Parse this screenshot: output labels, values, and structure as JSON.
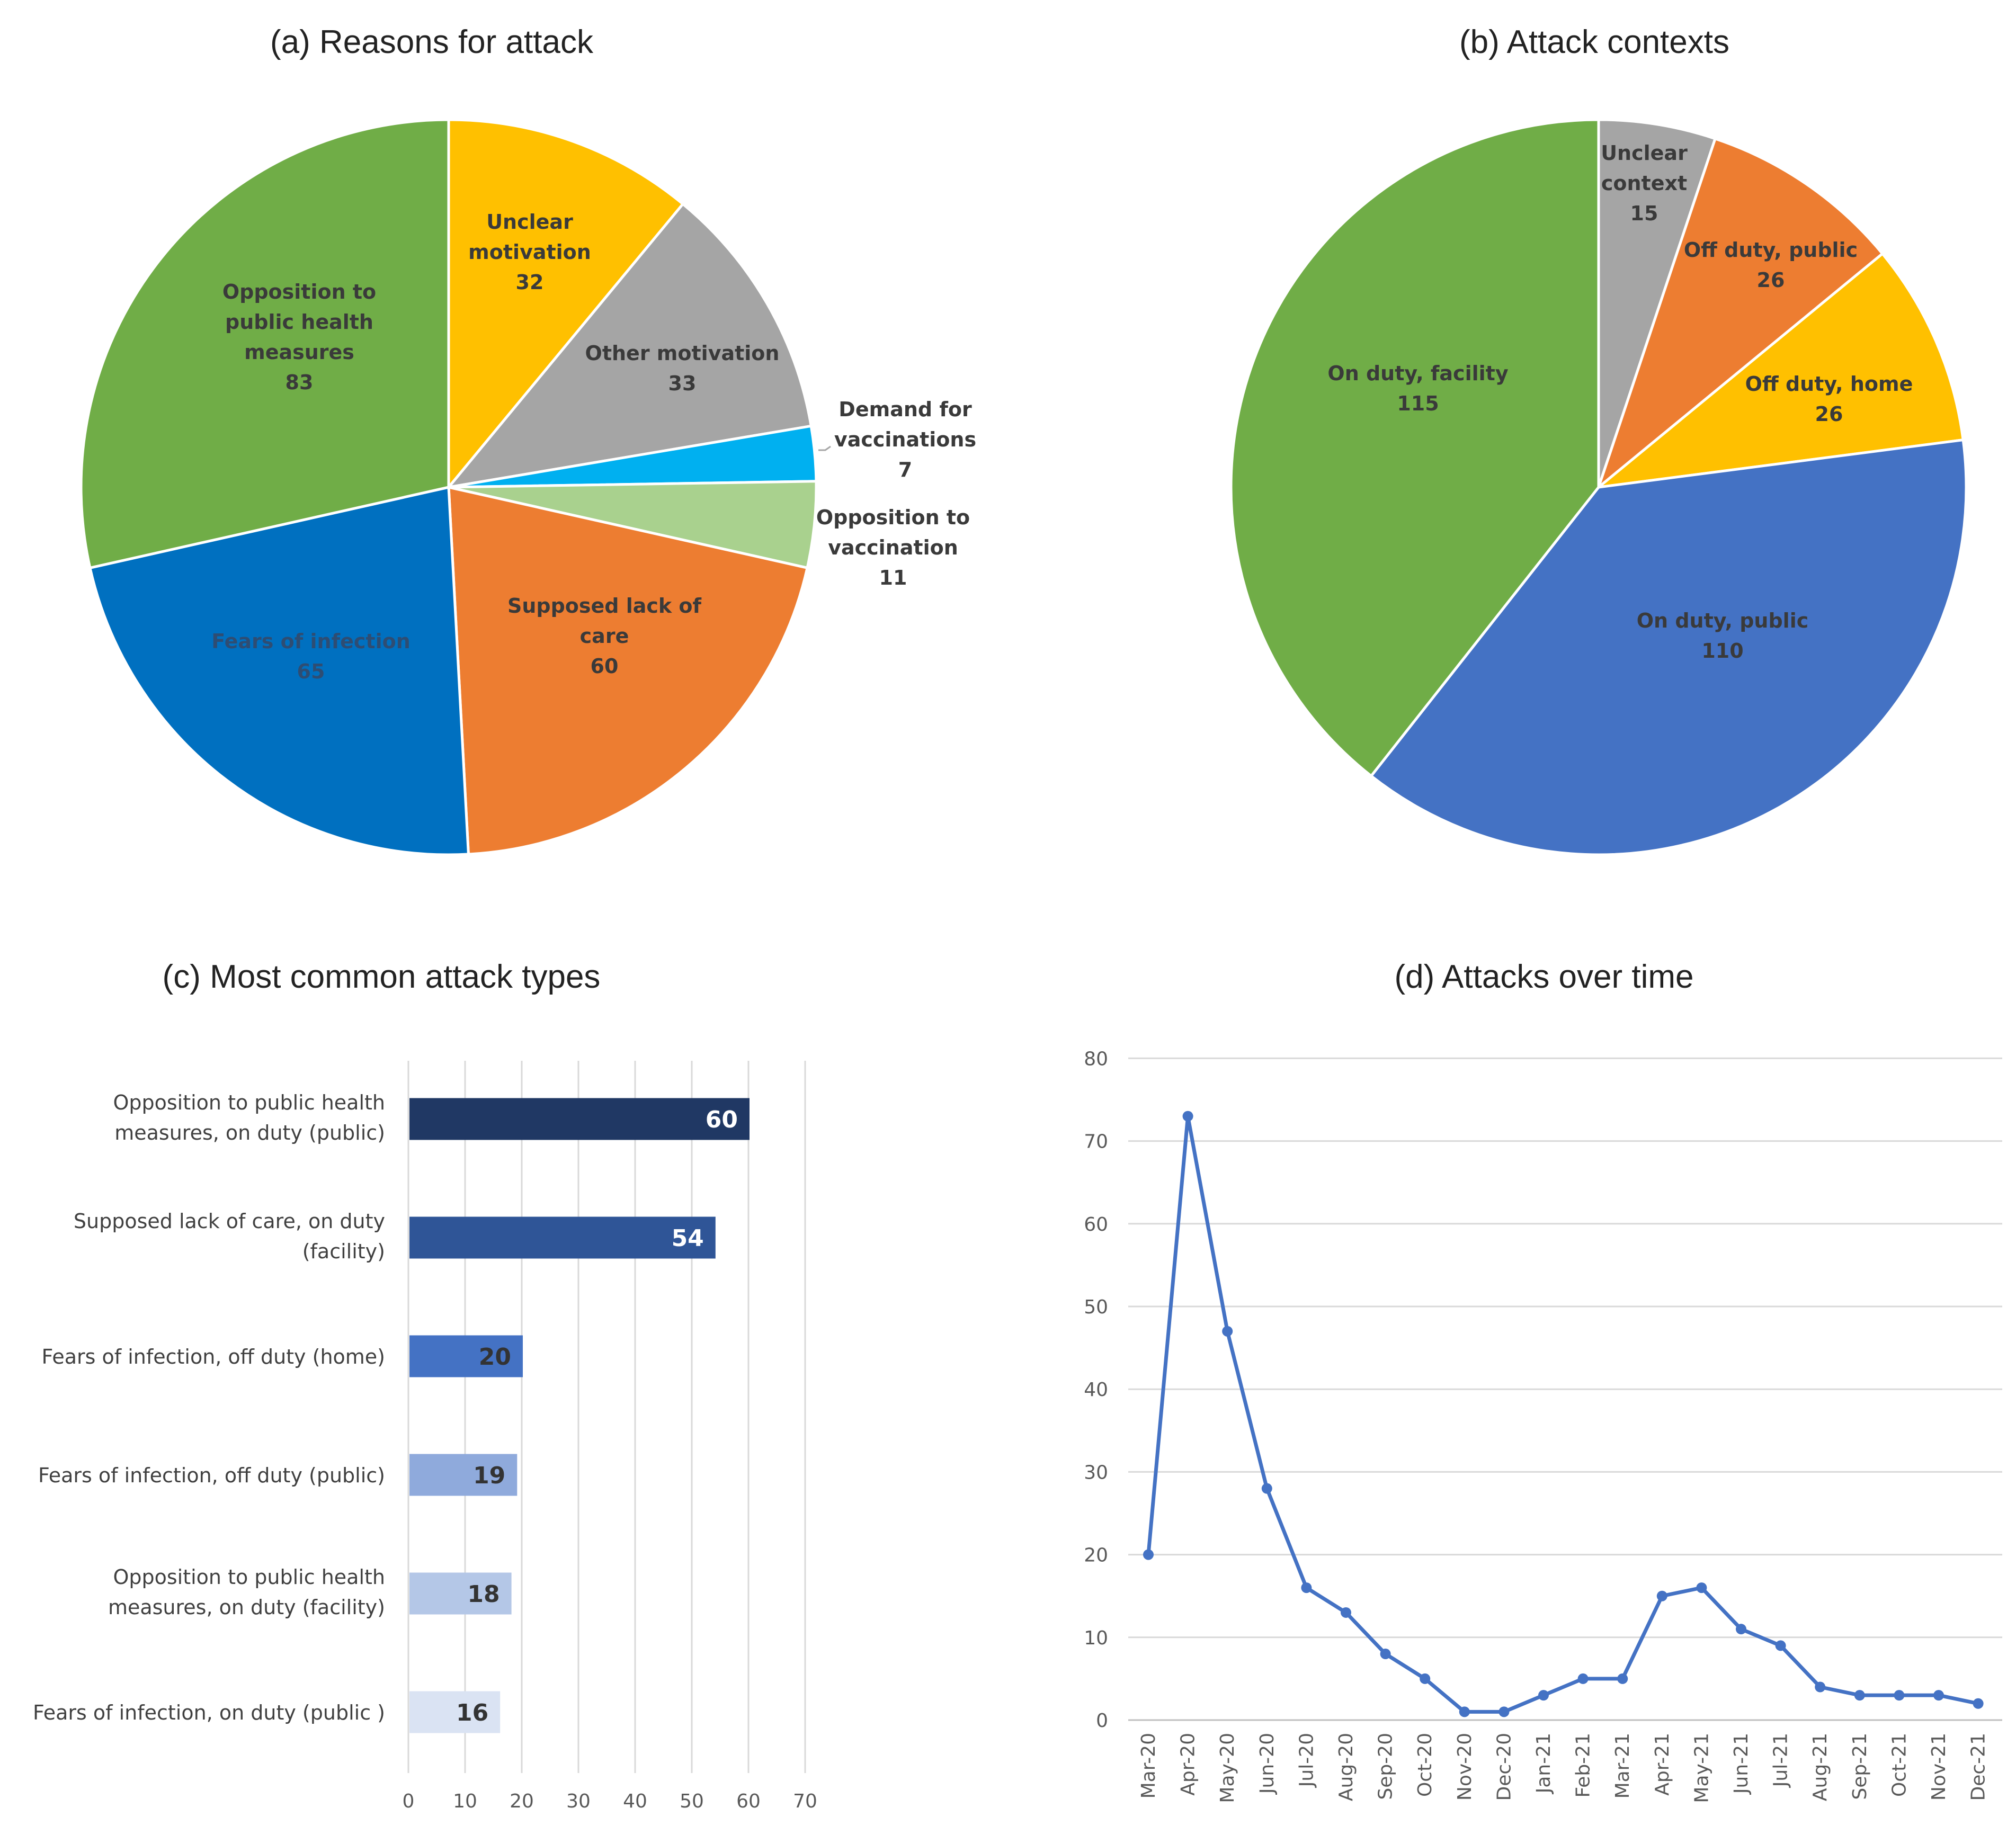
{
  "chart_data": [
    {
      "type": "pie",
      "title": "(a) Reasons for attack",
      "slices": [
        {
          "label": "Unclear motivation",
          "value": 32,
          "color": "#FFC000",
          "text_color": "#3a3a3a"
        },
        {
          "label": "Other motivation",
          "value": 33,
          "color": "#A5A5A5",
          "text_color": "#3a3a3a"
        },
        {
          "label": "Demand for vaccinations",
          "value": 7,
          "color": "#00B0F0",
          "text_color": "#3a3a3a"
        },
        {
          "label": "Opposition to vaccination",
          "value": 11,
          "color": "#A9D18E",
          "text_color": "#3a3a3a"
        },
        {
          "label": "Supposed lack of care",
          "value": 60,
          "color": "#ED7D31",
          "text_color": "#3a3a3a"
        },
        {
          "label": "Fears of infection",
          "value": 65,
          "color": "#0070C0",
          "text_color": "#2e4d73"
        },
        {
          "label": "Opposition to public health measures",
          "value": 83,
          "color": "#70AD47",
          "text_color": "#3a3a3a"
        }
      ]
    },
    {
      "type": "pie",
      "title": "(b) Attack contexts",
      "slices": [
        {
          "label": "Unclear context",
          "value": 15,
          "color": "#A5A5A5",
          "text_color": "#3a3a3a"
        },
        {
          "label": "Off duty, public",
          "value": 26,
          "color": "#ED7D31",
          "text_color": "#3a3a3a"
        },
        {
          "label": "Off duty, home",
          "value": 26,
          "color": "#FFC000",
          "text_color": "#3a3a3a"
        },
        {
          "label": "On duty, public",
          "value": 110,
          "color": "#4472C4",
          "text_color": "#3a3a3a"
        },
        {
          "label": "On duty, facility",
          "value": 115,
          "color": "#70AD47",
          "text_color": "#3a3a3a"
        }
      ]
    },
    {
      "type": "bar",
      "orientation": "horizontal",
      "title": "(c) Most common attack types",
      "categories": [
        "Opposition to public health measures, on duty (public)",
        "Supposed lack of care, on duty (facility)",
        "Fears of infection, off duty (home)",
        "Fears of infection, off duty (public)",
        "Opposition to public health measures, on duty (facility)",
        "Fears of infection, on duty (public )"
      ],
      "values": [
        60,
        54,
        20,
        19,
        18,
        16
      ],
      "colors": [
        "#203864",
        "#2F5597",
        "#4472C4",
        "#8FAADC",
        "#B4C7E7",
        "#DAE3F3"
      ],
      "value_text_colors": [
        "#ffffff",
        "#ffffff",
        "#333333",
        "#333333",
        "#333333",
        "#333333"
      ],
      "xlim": [
        0,
        70
      ],
      "xticks": [
        0,
        10,
        20,
        30,
        40,
        50,
        60,
        70
      ],
      "grid": true
    },
    {
      "type": "line",
      "title": "(d) Attacks over time",
      "color": "#4472C4",
      "x": [
        "Mar-20",
        "Apr-20",
        "May-20",
        "Jun-20",
        "Jul-20",
        "Aug-20",
        "Sep-20",
        "Oct-20",
        "Nov-20",
        "Dec-20",
        "Jan-21",
        "Feb-21",
        "Mar-21",
        "Apr-21",
        "May-21",
        "Jun-21",
        "Jul-21",
        "Aug-21",
        "Sep-21",
        "Oct-21",
        "Nov-21",
        "Dec-21"
      ],
      "values": [
        20,
        73,
        47,
        28,
        16,
        13,
        8,
        5,
        1,
        1,
        3,
        5,
        5,
        15,
        16,
        11,
        9,
        4,
        3,
        3,
        3,
        2
      ],
      "ylim": [
        0,
        80
      ],
      "yticks": [
        0,
        10,
        20,
        30,
        40,
        50,
        60,
        70,
        80
      ],
      "grid": true
    }
  ]
}
